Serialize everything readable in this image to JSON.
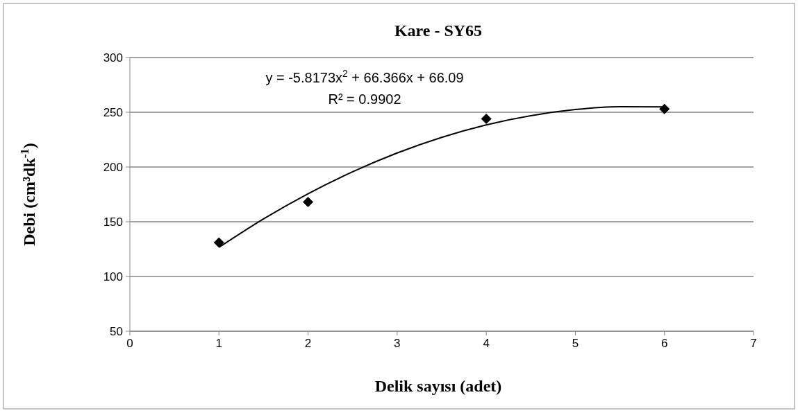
{
  "chart_data": {
    "type": "scatter",
    "title": "Kare - SY65",
    "xlabel": "Delik sayısı (adet)",
    "ylabel": "Debi (cm³dk$^{-1}$)",
    "annotations": [
      "y = -5.8173x$^{2}$ + 66.366x + 66.09",
      "R² = 0.9902"
    ],
    "xlim": [
      0,
      7
    ],
    "xticks": [
      0,
      1,
      2,
      3,
      4,
      5,
      6,
      7
    ],
    "ylim": [
      50,
      300
    ],
    "yticks": [
      50,
      100,
      150,
      200,
      250,
      300
    ],
    "grid": "y",
    "marker": "diamond",
    "series": [
      {
        "color": "#000000",
        "x": [
          1,
          2,
          4,
          6
        ],
        "values": [
          131,
          168,
          244,
          253
        ]
      },
      {
        "type": "line",
        "color": "#000000",
        "line_style": "solid",
        "marker": "none",
        "x": [
          1,
          1.5,
          2,
          2.5,
          3,
          3.5,
          4,
          4.5,
          5,
          5.5,
          6
        ],
        "values": [
          126.6,
          152.6,
          175.6,
          195.6,
          212.8,
          227.1,
          238.5,
          246.9,
          252.5,
          255.1,
          254.9
        ]
      }
    ]
  }
}
